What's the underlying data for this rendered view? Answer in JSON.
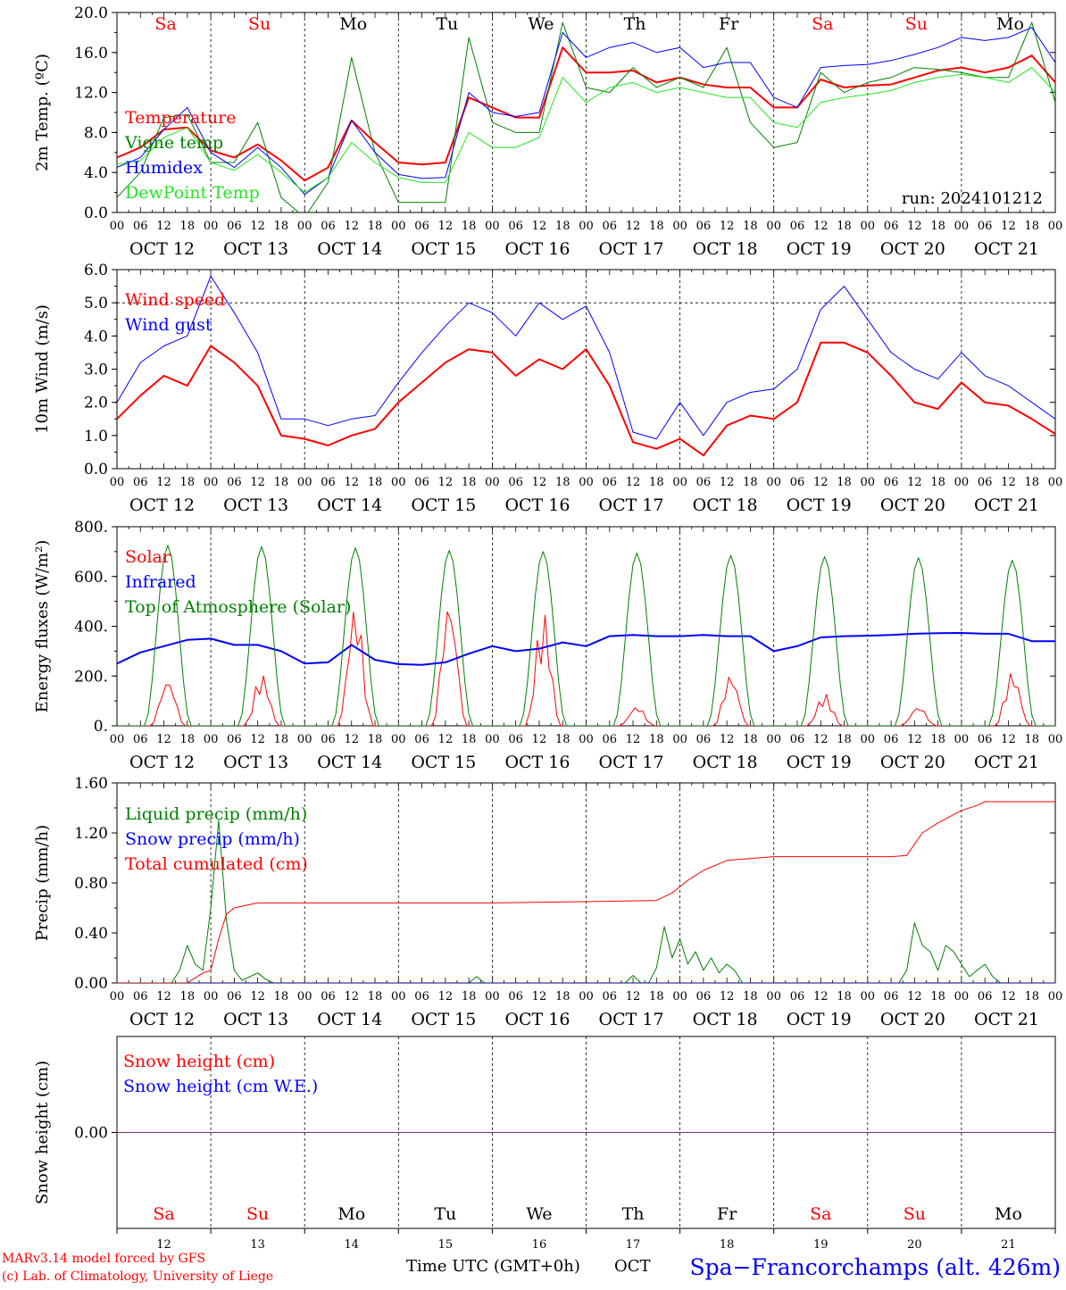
{
  "run_label": "run: 2024101212",
  "footer": {
    "credit_line1": "MARv3.14 model forced by GFS",
    "credit_line2": "(c) Lab. of Climatology, University of Liege",
    "xaxis_title": "Time UTC (GMT+0h)",
    "month": "OCT",
    "station": "Spa−Francorchamps (alt. 426m)"
  },
  "days": [
    {
      "weekday": "Sa",
      "date": "OCT 12",
      "num": "12",
      "weekend": true
    },
    {
      "weekday": "Su",
      "date": "OCT 13",
      "num": "13",
      "weekend": true
    },
    {
      "weekday": "Mo",
      "date": "OCT 14",
      "num": "14",
      "weekend": false
    },
    {
      "weekday": "Tu",
      "date": "OCT 15",
      "num": "15",
      "weekend": false
    },
    {
      "weekday": "We",
      "date": "OCT 16",
      "num": "16",
      "weekend": false
    },
    {
      "weekday": "Th",
      "date": "OCT 17",
      "num": "17",
      "weekend": false
    },
    {
      "weekday": "Fr",
      "date": "OCT 18",
      "num": "18",
      "weekend": false
    },
    {
      "weekday": "Sa",
      "date": "OCT 19",
      "num": "19",
      "weekend": true
    },
    {
      "weekday": "Su",
      "date": "OCT 20",
      "num": "20",
      "weekend": true
    },
    {
      "weekday": "Mo",
      "date": "OCT 21",
      "num": "21",
      "weekend": false
    }
  ],
  "hour_ticks": [
    "00",
    "06",
    "12",
    "18"
  ],
  "colors": {
    "red": "#ff0000",
    "green": "#008000",
    "blue": "#0000ff",
    "lime": "#22e622",
    "purple": "#7b2a8a",
    "weekend": "#ff0000",
    "weekday": "#000000"
  },
  "chart_data": [
    {
      "type": "line",
      "ylabel": "2m Temp. (ºC)",
      "ylim": [
        0,
        20
      ],
      "yticks": [
        "0.0",
        "4.0",
        "8.0",
        "12.0",
        "16.0",
        "20.0"
      ],
      "ytick_values": [
        0,
        4,
        8,
        12,
        16,
        20
      ],
      "x_unit": "hours since OCT 12 00 UTC",
      "xlim": [
        0,
        240
      ],
      "series": [
        {
          "name": "Temperature",
          "color": "red",
          "width": 2,
          "x": [
            0,
            6,
            12,
            18,
            24,
            30,
            36,
            42,
            48,
            54,
            60,
            66,
            72,
            78,
            84,
            90,
            96,
            102,
            108,
            114,
            120,
            126,
            132,
            138,
            144,
            150,
            156,
            162,
            168,
            174,
            180,
            186,
            192,
            198,
            204,
            210,
            216,
            222,
            228,
            234,
            240
          ],
          "y": [
            5.5,
            6.5,
            8.3,
            8.5,
            6.2,
            5.5,
            6.8,
            5.2,
            3.2,
            4.5,
            9.2,
            7,
            5,
            4.8,
            5,
            11.5,
            10.5,
            9.5,
            9.5,
            16.5,
            14,
            14,
            14.2,
            13,
            13.5,
            12.8,
            12.5,
            12.5,
            10.5,
            10.5,
            13.3,
            12.5,
            12.7,
            12.8,
            13.5,
            14.2,
            14.5,
            14,
            14.5,
            15.7,
            13
          ]
        },
        {
          "name": "Vigne temp",
          "color": "green",
          "width": 1,
          "x": [
            0,
            6,
            12,
            18,
            24,
            30,
            36,
            42,
            48,
            54,
            60,
            66,
            72,
            78,
            84,
            90,
            96,
            102,
            108,
            114,
            120,
            126,
            132,
            138,
            144,
            150,
            156,
            162,
            168,
            174,
            180,
            186,
            192,
            198,
            204,
            210,
            216,
            222,
            228,
            234,
            240
          ],
          "y": [
            1.5,
            4,
            9.5,
            9.8,
            5,
            5,
            9,
            1.5,
            -0.5,
            3,
            15.5,
            6,
            1,
            1,
            1,
            17.5,
            9,
            8,
            8,
            19,
            12.5,
            12,
            14.5,
            12.5,
            13.5,
            12.5,
            16.5,
            9,
            6.5,
            7,
            14,
            12,
            13,
            13.5,
            14.5,
            14.3,
            14,
            13.5,
            13.5,
            19,
            11
          ]
        },
        {
          "name": "Humidex",
          "color": "blue",
          "width": 1,
          "x": [
            0,
            6,
            12,
            18,
            24,
            30,
            36,
            42,
            48,
            54,
            60,
            66,
            72,
            78,
            84,
            90,
            96,
            102,
            108,
            114,
            120,
            126,
            132,
            138,
            144,
            150,
            156,
            162,
            168,
            174,
            180,
            186,
            192,
            198,
            204,
            210,
            216,
            222,
            228,
            234,
            240
          ],
          "y": [
            4.5,
            5.5,
            8.3,
            10.5,
            6,
            4.5,
            6.5,
            4.5,
            1.8,
            3.5,
            9.2,
            6,
            3.8,
            3.4,
            3.5,
            12,
            10,
            9.6,
            10,
            18,
            15.5,
            16.5,
            17,
            16,
            16.5,
            14.5,
            15,
            15,
            11.5,
            10.5,
            14.5,
            14.7,
            14.8,
            15.2,
            15.8,
            16.5,
            17.5,
            17.2,
            17.5,
            18.5,
            15
          ]
        },
        {
          "name": "DewPoint Temp",
          "color": "lime",
          "width": 1,
          "x": [
            0,
            6,
            12,
            18,
            24,
            30,
            36,
            42,
            48,
            54,
            60,
            66,
            72,
            78,
            84,
            90,
            96,
            102,
            108,
            114,
            120,
            126,
            132,
            138,
            144,
            150,
            156,
            162,
            168,
            174,
            180,
            186,
            192,
            198,
            204,
            210,
            216,
            222,
            228,
            234,
            240
          ],
          "y": [
            4.8,
            5.2,
            7.5,
            8.5,
            5,
            4.2,
            5.8,
            4,
            2,
            3.5,
            7,
            5,
            3.5,
            3,
            3,
            8,
            6.5,
            6.5,
            7.5,
            13.5,
            11,
            12.5,
            13,
            12,
            12.5,
            12,
            11.5,
            11.5,
            9,
            8.5,
            11,
            11.5,
            11.8,
            12.2,
            13,
            13.5,
            13.8,
            13.5,
            13,
            14.5,
            12
          ]
        }
      ]
    },
    {
      "type": "line",
      "ylabel": "10m Wind (m/s)",
      "ylim": [
        0,
        6
      ],
      "yticks": [
        "0.0",
        "1.0",
        "2.0",
        "3.0",
        "4.0",
        "5.0",
        "6.0"
      ],
      "ytick_values": [
        0,
        1,
        2,
        3,
        4,
        5,
        6
      ],
      "x_unit": "hours since OCT 12 00 UTC",
      "xlim": [
        0,
        240
      ],
      "ref_line": 5,
      "series": [
        {
          "name": "Wind speed",
          "color": "red",
          "width": 2,
          "x": [
            0,
            6,
            12,
            18,
            24,
            30,
            36,
            42,
            48,
            54,
            60,
            66,
            72,
            78,
            84,
            90,
            96,
            102,
            108,
            114,
            120,
            126,
            132,
            138,
            144,
            150,
            156,
            162,
            168,
            174,
            180,
            186,
            192,
            198,
            204,
            210,
            216,
            222,
            228,
            234,
            240
          ],
          "y": [
            1.5,
            2.2,
            2.8,
            2.5,
            3.7,
            3.2,
            2.5,
            1.0,
            0.9,
            0.7,
            1.0,
            1.2,
            2.0,
            2.6,
            3.2,
            3.6,
            3.5,
            2.8,
            3.3,
            3.0,
            3.6,
            2.5,
            0.8,
            0.6,
            0.9,
            0.4,
            1.3,
            1.6,
            1.5,
            2.0,
            3.8,
            3.8,
            3.5,
            2.8,
            2.0,
            1.8,
            2.6,
            2.0,
            1.9,
            1.5,
            1.05
          ]
        },
        {
          "name": "Wind gust",
          "color": "blue",
          "width": 1,
          "x": [
            0,
            6,
            12,
            18,
            24,
            30,
            36,
            42,
            48,
            54,
            60,
            66,
            72,
            78,
            84,
            90,
            96,
            102,
            108,
            114,
            120,
            126,
            132,
            138,
            144,
            150,
            156,
            162,
            168,
            174,
            180,
            186,
            192,
            198,
            204,
            210,
            216,
            222,
            228,
            234,
            240
          ],
          "y": [
            2.0,
            3.2,
            3.7,
            4.0,
            5.8,
            4.7,
            3.5,
            1.5,
            1.5,
            1.3,
            1.5,
            1.6,
            2.6,
            3.5,
            4.3,
            5.0,
            4.7,
            4.0,
            5.0,
            4.5,
            4.9,
            3.5,
            1.1,
            0.9,
            2.0,
            1.0,
            2.0,
            2.3,
            2.4,
            3.0,
            4.8,
            5.5,
            4.5,
            3.5,
            3.0,
            2.7,
            3.5,
            2.8,
            2.5,
            2.0,
            1.5
          ]
        }
      ]
    },
    {
      "type": "line",
      "ylabel": "Energy fluxes (W/m²)",
      "ylim": [
        0,
        800
      ],
      "yticks": [
        "0.",
        "200.",
        "400.",
        "600.",
        "800."
      ],
      "ytick_values": [
        0,
        200,
        400,
        600,
        800
      ],
      "x_unit": "hours since OCT 12 00 UTC",
      "xlim": [
        0,
        240
      ],
      "series": [
        {
          "name": "Solar",
          "color": "red",
          "width": 1,
          "daily_peak": [
            190,
            210,
            490,
            510,
            460,
            80,
            210,
            130,
            80,
            220
          ]
        },
        {
          "name": "Infrared",
          "color": "blue",
          "width": 2,
          "x": [
            0,
            6,
            12,
            18,
            24,
            30,
            36,
            42,
            48,
            54,
            60,
            66,
            72,
            78,
            84,
            90,
            96,
            102,
            108,
            114,
            120,
            126,
            132,
            138,
            144,
            150,
            156,
            162,
            168,
            174,
            180,
            186,
            192,
            198,
            204,
            210,
            216,
            222,
            228,
            234,
            240
          ],
          "y": [
            250,
            295,
            320,
            345,
            350,
            325,
            325,
            300,
            250,
            255,
            325,
            265,
            248,
            245,
            255,
            290,
            320,
            300,
            310,
            335,
            320,
            360,
            365,
            360,
            360,
            365,
            360,
            360,
            300,
            320,
            355,
            360,
            362,
            365,
            370,
            372,
            373,
            370,
            370,
            340,
            340
          ]
        },
        {
          "name": "Top of Atmosphere (Solar)",
          "color": "green",
          "width": 1,
          "daily_peak": [
            725,
            720,
            715,
            705,
            700,
            695,
            685,
            680,
            675,
            665
          ]
        }
      ]
    },
    {
      "type": "line",
      "ylabel": "Precip (mm/h)",
      "ylim": [
        0,
        1.6
      ],
      "yticks": [
        "0.00",
        "0.40",
        "0.80",
        "1.20",
        "1.60"
      ],
      "ytick_values": [
        0,
        0.4,
        0.8,
        1.2,
        1.6
      ],
      "x_unit": "hours since OCT 12 00 UTC",
      "xlim": [
        0,
        240
      ],
      "series": [
        {
          "name": "Liquid precip (mm/h)",
          "color": "green",
          "width": 1,
          "x": [
            0,
            14,
            16,
            18,
            20,
            22,
            24,
            26,
            28,
            30,
            32,
            34,
            36,
            38,
            40,
            90,
            92,
            94,
            130,
            132,
            134,
            136,
            138,
            140,
            142,
            144,
            146,
            148,
            150,
            152,
            154,
            156,
            158,
            160,
            200,
            202,
            204,
            206,
            208,
            210,
            212,
            214,
            216,
            218,
            220,
            222,
            224,
            226,
            228
          ],
          "y": [
            0,
            0,
            0.1,
            0.3,
            0.15,
            0.1,
            0.6,
            1.3,
            0.5,
            0.1,
            0.02,
            0.05,
            0.08,
            0.03,
            0,
            0,
            0.05,
            0,
            0,
            0.06,
            0,
            0,
            0.12,
            0.45,
            0.2,
            0.35,
            0.15,
            0.25,
            0.1,
            0.2,
            0.08,
            0.15,
            0.1,
            0,
            0,
            0.1,
            0.48,
            0.3,
            0.25,
            0.1,
            0.3,
            0.25,
            0.15,
            0.05,
            0.1,
            0.15,
            0.05,
            0,
            0
          ]
        },
        {
          "name": "Snow precip (mm/h)",
          "color": "blue",
          "width": 1,
          "x": [
            0,
            240
          ],
          "y": [
            0,
            0
          ]
        },
        {
          "name": "Total cumulated (cm)",
          "color": "red",
          "width": 1,
          "x": [
            0,
            18,
            22,
            24,
            26,
            28,
            30,
            36,
            48,
            96,
            120,
            138,
            142,
            146,
            150,
            156,
            168,
            180,
            192,
            198,
            202,
            206,
            210,
            216,
            220,
            222,
            240
          ],
          "y": [
            0,
            0,
            0.08,
            0.1,
            0.35,
            0.55,
            0.6,
            0.64,
            0.64,
            0.64,
            0.65,
            0.66,
            0.72,
            0.82,
            0.9,
            0.98,
            1.01,
            1.01,
            1.01,
            1.01,
            1.02,
            1.2,
            1.28,
            1.38,
            1.42,
            1.45,
            1.45
          ]
        }
      ]
    },
    {
      "type": "line",
      "ylabel": "Snow height (cm)",
      "ylim": [
        -1,
        1
      ],
      "yticks": [
        "0.00"
      ],
      "ytick_values": [
        0
      ],
      "x_unit": "hours since OCT 12 00 UTC",
      "xlim": [
        0,
        240
      ],
      "series": [
        {
          "name": "Snow height (cm)",
          "color": "red",
          "width": 1,
          "x": [
            0,
            240
          ],
          "y": [
            0,
            0
          ]
        },
        {
          "name": "Snow height (cm W.E.)",
          "color": "blue",
          "width": 1,
          "x": [
            0,
            240
          ],
          "y": [
            0,
            0
          ]
        }
      ]
    }
  ]
}
